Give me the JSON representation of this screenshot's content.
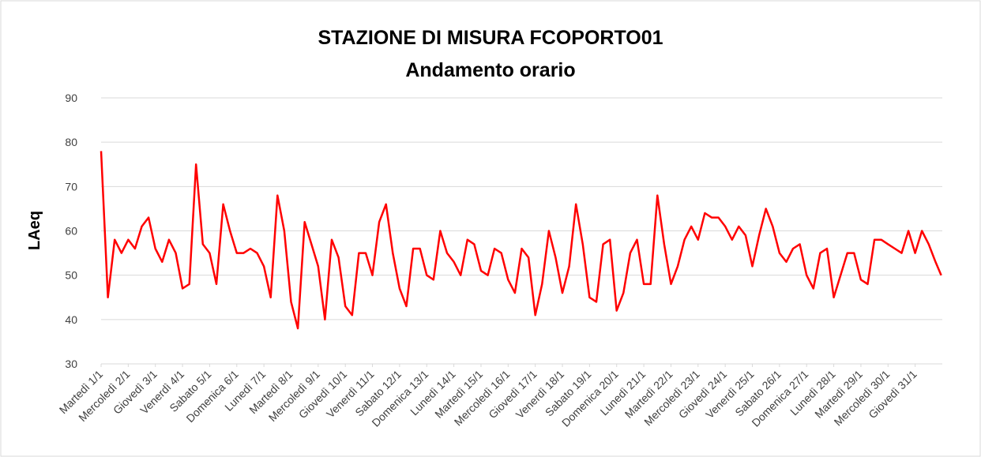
{
  "chart_data": {
    "type": "line",
    "title": "STAZIONE DI MISURA FCOPORTO01",
    "subtitle": "Andamento orario",
    "y_label": "LAeq",
    "xlim": [
      0,
      744
    ],
    "xticks": [
      {
        "value": 0,
        "label": "Martedì 1/1"
      },
      {
        "value": 24,
        "label": "Mercoledì 2/1"
      },
      {
        "value": 48,
        "label": "Giovedì 3/1"
      },
      {
        "value": 72,
        "label": "Venerdì 4/1"
      },
      {
        "value": 96,
        "label": "Sabato 5/1"
      },
      {
        "value": 120,
        "label": "Domenica 6/1"
      },
      {
        "value": 144,
        "label": "Lunedì 7/1"
      },
      {
        "value": 168,
        "label": "Martedì 8/1"
      },
      {
        "value": 192,
        "label": "Mercoledì 9/1"
      },
      {
        "value": 216,
        "label": "Giovedì 10/1"
      },
      {
        "value": 240,
        "label": "Venerdì 11/1"
      },
      {
        "value": 264,
        "label": "Sabato 12/1"
      },
      {
        "value": 288,
        "label": "Domenica 13/1"
      },
      {
        "value": 312,
        "label": "Lunedì 14/1"
      },
      {
        "value": 336,
        "label": "Martedì 15/1"
      },
      {
        "value": 360,
        "label": "Mercoledì 16/1"
      },
      {
        "value": 384,
        "label": "Giovedì 17/1"
      },
      {
        "value": 408,
        "label": "Venerdì 18/1"
      },
      {
        "value": 432,
        "label": "Sabato 19/1"
      },
      {
        "value": 456,
        "label": "Domenica 20/1"
      },
      {
        "value": 480,
        "label": "Lunedì 21/1"
      },
      {
        "value": 504,
        "label": "Martedì 22/1"
      },
      {
        "value": 528,
        "label": "Mercoledì 23/1"
      },
      {
        "value": 552,
        "label": "Giovedì 24/1"
      },
      {
        "value": 576,
        "label": "Venerdì 25/1"
      },
      {
        "value": 600,
        "label": "Sabato 26/1"
      },
      {
        "value": 624,
        "label": "Domenica 27/1"
      },
      {
        "value": 648,
        "label": "Lunedì 28/1"
      },
      {
        "value": 672,
        "label": "Martedì 29/1"
      },
      {
        "value": 696,
        "label": "Mercoledì 30/1"
      },
      {
        "value": 720,
        "label": "Giovedì 31/1"
      }
    ],
    "ylim": [
      30,
      90
    ],
    "yticks": [
      30,
      40,
      50,
      60,
      70,
      80,
      90
    ],
    "grid": true,
    "x": [
      0,
      6,
      12,
      18,
      24,
      30,
      36,
      42,
      48,
      54,
      60,
      66,
      72,
      78,
      84,
      90,
      96,
      102,
      108,
      114,
      120,
      126,
      132,
      138,
      144,
      150,
      156,
      162,
      168,
      174,
      180,
      186,
      192,
      198,
      204,
      210,
      216,
      222,
      228,
      234,
      240,
      246,
      252,
      258,
      264,
      270,
      276,
      282,
      288,
      294,
      300,
      306,
      312,
      318,
      324,
      330,
      336,
      342,
      348,
      354,
      360,
      366,
      372,
      378,
      384,
      390,
      396,
      402,
      408,
      414,
      420,
      426,
      432,
      438,
      444,
      450,
      456,
      462,
      468,
      474,
      480,
      486,
      492,
      498,
      504,
      510,
      516,
      522,
      528,
      534,
      540,
      546,
      552,
      558,
      564,
      570,
      576,
      582,
      588,
      594,
      600,
      606,
      612,
      618,
      624,
      630,
      636,
      642,
      648,
      654,
      660,
      666,
      672,
      678,
      684,
      690,
      696,
      702,
      708,
      714,
      720,
      726,
      732,
      738,
      743
    ],
    "series": [
      {
        "name": "LAeq",
        "color": "#ff0000",
        "values": [
          78,
          45,
          58,
          55,
          58,
          56,
          61,
          63,
          56,
          53,
          58,
          55,
          47,
          48,
          75,
          57,
          55,
          48,
          66,
          60,
          55,
          55,
          56,
          55,
          52,
          45,
          68,
          60,
          44,
          38,
          62,
          57,
          52,
          40,
          58,
          54,
          43,
          41,
          55,
          55,
          50,
          62,
          66,
          55,
          47,
          43,
          56,
          56,
          50,
          49,
          60,
          55,
          53,
          50,
          58,
          57,
          51,
          50,
          56,
          55,
          49,
          46,
          56,
          54,
          41,
          48,
          60,
          54,
          46,
          52,
          66,
          57,
          45,
          44,
          57,
          58,
          42,
          46,
          55,
          58,
          48,
          48,
          68,
          57,
          48,
          52,
          58,
          61,
          58,
          64,
          63,
          63,
          61,
          58,
          61,
          59,
          52,
          59,
          65,
          61,
          55,
          53,
          56,
          57,
          50,
          47,
          55,
          56,
          45,
          50,
          55,
          55,
          49,
          48,
          58,
          58,
          57,
          56,
          55,
          60,
          55,
          60,
          57,
          53,
          50
        ]
      }
    ]
  }
}
